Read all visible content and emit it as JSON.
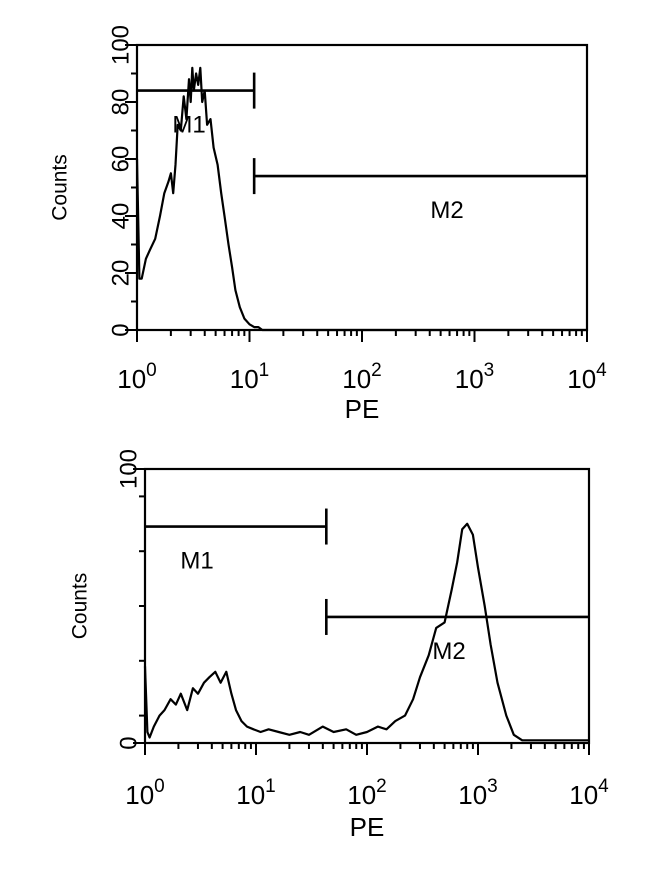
{
  "chart_data": [
    {
      "type": "histogram",
      "xlabel": "PE",
      "ylabel": "Counts",
      "x_scale": "log",
      "xlim": [
        1,
        10000
      ],
      "ylim": [
        0,
        100
      ],
      "x_ticks": [
        {
          "base": "10",
          "exp": "0"
        },
        {
          "base": "10",
          "exp": "1"
        },
        {
          "base": "10",
          "exp": "2"
        },
        {
          "base": "10",
          "exp": "3"
        },
        {
          "base": "10",
          "exp": "4"
        }
      ],
      "y_ticks": [
        "0",
        "20",
        "40",
        "60",
        "80",
        "100"
      ],
      "y_tick_values": [
        0,
        20,
        40,
        60,
        80,
        100
      ],
      "markers": [
        {
          "label": "M1",
          "x_start": 1,
          "x_end": 11,
          "y": 84
        },
        {
          "label": "M2",
          "x_start": 11,
          "x_end": 10000,
          "y": 54
        }
      ],
      "series": [
        {
          "x": [
            1.0,
            1.05,
            1.1,
            1.2,
            1.3,
            1.45,
            1.6,
            1.75,
            1.9,
            2.0,
            2.1,
            2.2,
            2.3,
            2.45,
            2.6,
            2.75,
            2.9,
            3.0,
            3.1,
            3.2,
            3.35,
            3.5,
            3.65,
            3.8,
            4.0,
            4.2,
            4.5,
            4.8,
            5.2,
            5.6,
            6.0,
            6.5,
            7.0,
            7.5,
            8.2,
            9.0,
            10.0,
            11.0,
            12.0,
            13.0,
            15.0,
            20.0,
            30.0,
            50.0,
            100.0,
            300.0,
            1000.0,
            3000.0,
            10000.0
          ],
          "y": [
            60,
            18,
            18,
            25,
            28,
            32,
            40,
            48,
            52,
            55,
            48,
            58,
            72,
            70,
            82,
            74,
            88,
            80,
            92,
            84,
            90,
            86,
            92,
            80,
            84,
            72,
            74,
            64,
            58,
            48,
            40,
            30,
            22,
            14,
            8,
            4,
            2,
            1,
            1,
            0,
            0,
            0,
            0,
            0,
            0,
            0,
            0,
            0,
            0
          ]
        }
      ]
    },
    {
      "type": "histogram",
      "xlabel": "PE",
      "ylabel": "Counts",
      "x_scale": "log",
      "xlim": [
        1,
        10000
      ],
      "ylim": [
        0,
        100
      ],
      "x_ticks": [
        {
          "base": "10",
          "exp": "0"
        },
        {
          "base": "10",
          "exp": "1"
        },
        {
          "base": "10",
          "exp": "2"
        },
        {
          "base": "10",
          "exp": "3"
        },
        {
          "base": "10",
          "exp": "4"
        }
      ],
      "y_ticks": [
        "0",
        "100"
      ],
      "y_tick_values": [
        0,
        100
      ],
      "markers": [
        {
          "label": "M1",
          "x_start": 1,
          "x_end": 43,
          "y": 79
        },
        {
          "label": "M2",
          "x_start": 43,
          "x_end": 10000,
          "y": 46
        }
      ],
      "series": [
        {
          "x": [
            1.0,
            1.05,
            1.1,
            1.2,
            1.35,
            1.5,
            1.7,
            1.9,
            2.1,
            2.4,
            2.7,
            3.0,
            3.4,
            3.8,
            4.3,
            4.8,
            5.4,
            6.0,
            6.6,
            7.4,
            8.3,
            9.5,
            11,
            13,
            16,
            20,
            25,
            30,
            40,
            50,
            65,
            80,
            100,
            125,
            150,
            180,
            220,
            260,
            300,
            360,
            420,
            500,
            580,
            650,
            720,
            800,
            900,
            1000,
            1150,
            1300,
            1500,
            1800,
            2100,
            2500,
            3000,
            4000,
            6000,
            10000
          ],
          "y": [
            28,
            4,
            2,
            6,
            10,
            12,
            16,
            14,
            18,
            12,
            20,
            18,
            22,
            24,
            26,
            22,
            26,
            18,
            12,
            8,
            6,
            5,
            4,
            5,
            4,
            3,
            4,
            3,
            6,
            4,
            5,
            3,
            4,
            6,
            5,
            8,
            10,
            16,
            24,
            32,
            42,
            44,
            56,
            66,
            78,
            80,
            76,
            64,
            50,
            36,
            22,
            10,
            3,
            1,
            1,
            1,
            1,
            1
          ]
        }
      ]
    }
  ]
}
